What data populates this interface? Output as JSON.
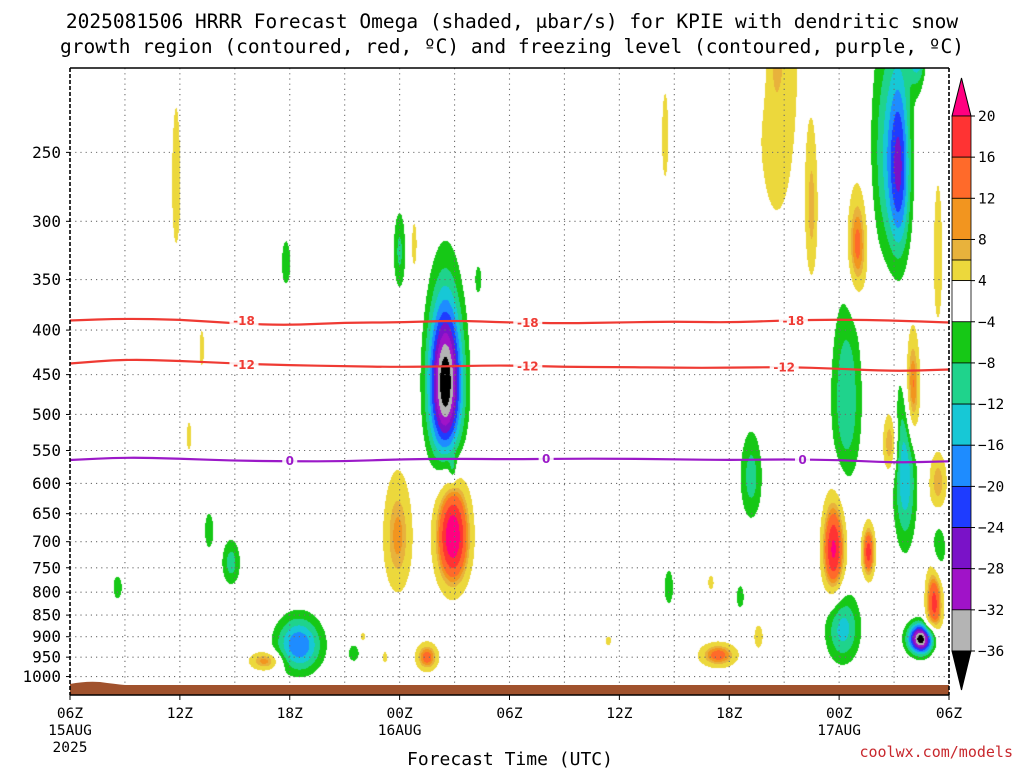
{
  "title": {
    "line1": "2025081506 HRRR Forecast Omega (shaded, μbar/s) for KPIE with dendritic snow",
    "line2": "growth region (contoured, red, ºC) and freezing level (contoured, purple, ºC)"
  },
  "credit": "coolwx.com/models",
  "chart_data": {
    "type": "heatmap",
    "title": "2025081506 HRRR Forecast Omega (shaded, μbar/s) for KPIE with dendritic snow growth region (contoured, red, ºC) and freezing level (contoured, purple, ºC)",
    "xlabel": "Forecast Time (UTC)",
    "ylabel": "",
    "x_ticks": [
      {
        "label": "06Z",
        "date": "15AUG",
        "year": "2025",
        "hours": 0
      },
      {
        "label": "12Z",
        "hours": 6
      },
      {
        "label": "18Z",
        "hours": 12
      },
      {
        "label": "00Z",
        "date": "16AUG",
        "hours": 18
      },
      {
        "label": "06Z",
        "hours": 24
      },
      {
        "label": "12Z",
        "hours": 30
      },
      {
        "label": "18Z",
        "hours": 36
      },
      {
        "label": "00Z",
        "date": "17AUG",
        "hours": 42
      },
      {
        "label": "06Z",
        "hours": 48
      }
    ],
    "x_range_hours": [
      0,
      48
    ],
    "y_axis": "pressure (hPa), inverted",
    "y_ticks": [
      "250",
      "300",
      "350",
      "400",
      "450",
      "500",
      "550",
      "600",
      "650",
      "700",
      "750",
      "800",
      "850",
      "900",
      "950",
      "1000"
    ],
    "y_range": [
      1050,
      200
    ],
    "grid": true,
    "colorbar": {
      "units": "μbar/s",
      "labels": [
        "20",
        "16",
        "12",
        "8",
        "4",
        "−4",
        "−8",
        "−12",
        "−16",
        "−20",
        "−24",
        "−28",
        "−32",
        "−36"
      ],
      "colors": [
        "#ff0080",
        "#ff3333",
        "#ff6a2a",
        "#f2951f",
        "#e8b23c",
        "#ecd83c",
        "#ffffff",
        "#16c816",
        "#1fd38c",
        "#17c8d6",
        "#1e8cff",
        "#1e3cff",
        "#7a12c8",
        "#a013c8",
        "#b4b4b4",
        "#000000"
      ]
    },
    "contours": [
      {
        "name": "-18",
        "color": "#ef3a33",
        "kind": "dendritic",
        "points": [
          [
            0,
            390
          ],
          [
            3,
            388
          ],
          [
            6,
            389
          ],
          [
            9,
            393
          ],
          [
            12,
            395
          ],
          [
            15,
            392
          ],
          [
            18,
            392
          ],
          [
            21,
            390
          ],
          [
            24,
            392
          ],
          [
            27,
            393
          ],
          [
            30,
            392
          ],
          [
            33,
            391
          ],
          [
            36,
            392
          ],
          [
            39,
            390
          ],
          [
            42,
            389
          ],
          [
            45,
            390
          ],
          [
            48,
            392
          ]
        ],
        "labels": [
          [
            9.5,
            390
          ],
          [
            25,
            392
          ],
          [
            39.5,
            390
          ]
        ]
      },
      {
        "name": "-12",
        "color": "#ef3a33",
        "kind": "dendritic",
        "points": [
          [
            0,
            437
          ],
          [
            3,
            432
          ],
          [
            6,
            434
          ],
          [
            9,
            437
          ],
          [
            12,
            439
          ],
          [
            15,
            440
          ],
          [
            18,
            441
          ],
          [
            21,
            440
          ],
          [
            24,
            439
          ],
          [
            27,
            441
          ],
          [
            30,
            441
          ],
          [
            33,
            442
          ],
          [
            36,
            442
          ],
          [
            39,
            441
          ],
          [
            42,
            443
          ],
          [
            45,
            446
          ],
          [
            48,
            444
          ]
        ],
        "labels": [
          [
            9.5,
            438
          ],
          [
            25,
            440
          ],
          [
            39,
            441
          ]
        ]
      },
      {
        "name": "0",
        "color": "#9b19c8",
        "kind": "freezing",
        "points": [
          [
            0,
            564
          ],
          [
            3,
            560
          ],
          [
            6,
            562
          ],
          [
            9,
            565
          ],
          [
            12,
            566
          ],
          [
            15,
            566
          ],
          [
            18,
            563
          ],
          [
            21,
            562
          ],
          [
            24,
            563
          ],
          [
            27,
            562
          ],
          [
            30,
            562
          ],
          [
            33,
            563
          ],
          [
            36,
            564
          ],
          [
            39,
            563
          ],
          [
            42,
            564
          ],
          [
            45,
            568
          ],
          [
            48,
            566
          ]
        ],
        "labels": [
          [
            12,
            565
          ],
          [
            26,
            562
          ],
          [
            40,
            563
          ]
        ]
      }
    ],
    "omega_features": [
      {
        "t": 20.5,
        "p": 460,
        "sw": 0.9,
        "sp": 95,
        "peak": -40
      },
      {
        "t": 46.5,
        "p": 905,
        "sw": 0.7,
        "sp": 35,
        "peak": -40
      },
      {
        "t": 12.5,
        "p": 920,
        "sw": 1.2,
        "sp": 65,
        "peak": -20
      },
      {
        "t": 42.4,
        "p": 480,
        "sw": 0.8,
        "sp": 110,
        "peak": -12
      },
      {
        "t": 45.3,
        "p": 260,
        "sw": 0.6,
        "sp": 65,
        "peak": -22
      },
      {
        "t": 45.6,
        "p": 580,
        "sw": 0.6,
        "sp": 120,
        "peak": -16
      },
      {
        "t": 47.4,
        "p": 720,
        "sw": 0.45,
        "sp": 60,
        "peak": -10
      },
      {
        "t": 42.2,
        "p": 880,
        "sw": 0.9,
        "sp": 80,
        "peak": -14
      },
      {
        "t": 44.5,
        "p": 250,
        "sw": 0.8,
        "sp": 75,
        "peak": -10
      },
      {
        "t": 37.2,
        "p": 590,
        "sw": 0.6,
        "sp": 70,
        "peak": -10
      },
      {
        "t": 8.8,
        "p": 740,
        "sw": 0.5,
        "sp": 45,
        "peak": -10
      },
      {
        "t": 18.0,
        "p": 325,
        "sw": 0.35,
        "sp": 35,
        "peak": -9
      },
      {
        "t": 46.3,
        "p": 180,
        "sw": 0.5,
        "sp": 25,
        "peak": -26
      },
      {
        "t": 2.6,
        "p": 790,
        "sw": 0.3,
        "sp": 30,
        "peak": -7
      },
      {
        "t": 32.7,
        "p": 790,
        "sw": 0.3,
        "sp": 45,
        "peak": -7
      },
      {
        "t": 15.5,
        "p": 940,
        "sw": 0.35,
        "sp": 25,
        "peak": -7
      },
      {
        "t": 36.6,
        "p": 810,
        "sw": 0.25,
        "sp": 30,
        "peak": -7
      },
      {
        "t": 7.6,
        "p": 680,
        "sw": 0.3,
        "sp": 40,
        "peak": -7
      },
      {
        "t": 37.7,
        "p": 180,
        "sw": 0.35,
        "sp": 35,
        "peak": -9
      },
      {
        "t": 11.8,
        "p": 335,
        "sw": 0.3,
        "sp": 25,
        "peak": -7
      },
      {
        "t": 20.9,
        "p": 578,
        "sw": 0.2,
        "sp": 18,
        "peak": -7
      },
      {
        "t": 22.3,
        "p": 350,
        "sw": 0.2,
        "sp": 15,
        "peak": -7
      },
      {
        "t": 20.9,
        "p": 690,
        "sw": 0.9,
        "sp": 95,
        "peak": 24
      },
      {
        "t": 41.7,
        "p": 715,
        "sw": 0.6,
        "sp": 90,
        "peak": 21
      },
      {
        "t": 46.0,
        "p": 470,
        "sw": 0.4,
        "sp": 70,
        "peak": 16
      },
      {
        "t": 47.2,
        "p": 820,
        "sw": 0.45,
        "sp": 90,
        "peak": 18
      },
      {
        "t": 43.6,
        "p": 720,
        "sw": 0.35,
        "sp": 50,
        "peak": 18
      },
      {
        "t": 43.0,
        "p": 320,
        "sw": 0.55,
        "sp": 45,
        "peak": 14
      },
      {
        "t": 47.4,
        "p": 600,
        "sw": 0.5,
        "sp": 50,
        "peak": 10
      },
      {
        "t": 44.8,
        "p": 540,
        "sw": 0.4,
        "sp": 45,
        "peak": 12
      },
      {
        "t": 19.5,
        "p": 950,
        "sw": 0.6,
        "sp": 35,
        "peak": 14
      },
      {
        "t": 35.4,
        "p": 945,
        "sw": 1.0,
        "sp": 30,
        "peak": 14
      },
      {
        "t": 10.7,
        "p": 960,
        "sw": 0.9,
        "sp": 25,
        "peak": 12
      },
      {
        "t": 17.9,
        "p": 690,
        "sw": 0.8,
        "sp": 110,
        "peak": 11
      },
      {
        "t": 38.6,
        "p": 165,
        "sw": 1.3,
        "sp": 140,
        "peak": 9
      },
      {
        "t": 40.5,
        "p": 290,
        "sw": 0.35,
        "sp": 60,
        "peak": 9
      },
      {
        "t": 42.5,
        "p": 160,
        "sw": 0.6,
        "sp": 60,
        "peak": 6
      },
      {
        "t": 46.8,
        "p": 160,
        "sw": 0.4,
        "sp": 40,
        "peak": 8
      },
      {
        "t": 47.4,
        "p": 330,
        "sw": 0.35,
        "sp": 90,
        "peak": 6
      },
      {
        "t": 5.8,
        "p": 270,
        "sw": 0.35,
        "sp": 75,
        "peak": 6
      },
      {
        "t": 19.2,
        "p": 170,
        "sw": 0.5,
        "sp": 60,
        "peak": 5
      },
      {
        "t": 7.2,
        "p": 420,
        "sw": 0.25,
        "sp": 40,
        "peak": 5
      },
      {
        "t": 6.5,
        "p": 530,
        "sw": 0.25,
        "sp": 40,
        "peak": 5
      },
      {
        "t": 32.5,
        "p": 240,
        "sw": 0.35,
        "sp": 55,
        "peak": 5
      },
      {
        "t": 29.4,
        "p": 910,
        "sw": 0.3,
        "sp": 22,
        "peak": 5
      },
      {
        "t": 35.0,
        "p": 780,
        "sw": 0.3,
        "sp": 30,
        "peak": 5
      },
      {
        "t": 18.8,
        "p": 320,
        "sw": 0.3,
        "sp": 40,
        "peak": 5
      },
      {
        "t": 16.0,
        "p": 900,
        "sw": 0.25,
        "sp": 20,
        "peak": 5
      },
      {
        "t": 46.8,
        "p": 880,
        "sw": 0.25,
        "sp": 30,
        "peak": 5
      },
      {
        "t": 17.2,
        "p": 950,
        "sw": 0.25,
        "sp": 25,
        "peak": 5
      },
      {
        "t": 37.6,
        "p": 900,
        "sw": 0.35,
        "sp": 40,
        "peak": 6
      }
    ]
  }
}
